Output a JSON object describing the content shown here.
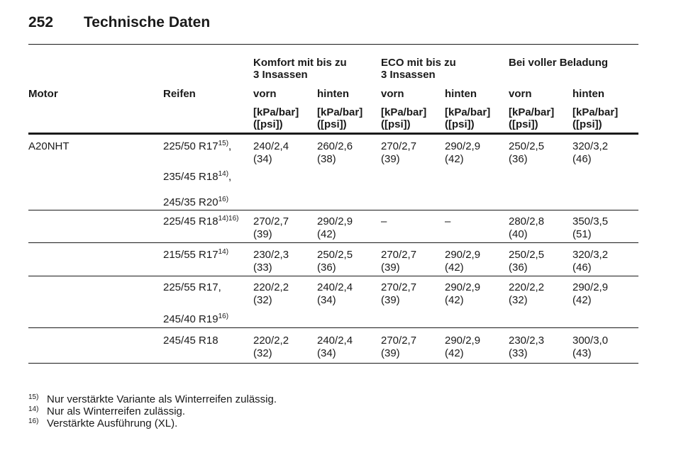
{
  "header": {
    "page": "252",
    "title": "Technische Daten"
  },
  "table": {
    "groups": [
      "Komfort mit bis zu\n3 Insassen",
      "ECO mit bis zu\n3 Insassen",
      "Bei voller Beladung"
    ],
    "columns": [
      "Motor",
      "Reifen",
      "vorn",
      "hinten",
      "vorn",
      "hinten",
      "vorn",
      "hinten"
    ],
    "unit": "[kPa/bar]\n([psi])",
    "rows": [
      {
        "motor": "A20NHT",
        "tires": [
          {
            "text": "225/50 R17",
            "sup": "15)",
            "suffix": ","
          },
          {
            "text": "235/45 R18",
            "sup": "14)",
            "suffix": ","
          },
          {
            "text": "245/35 R20",
            "sup": "16)"
          }
        ],
        "values": [
          [
            "240/2,4",
            "(34)"
          ],
          [
            "260/2,6",
            "(38)"
          ],
          [
            "270/2,7",
            "(39)"
          ],
          [
            "290/2,9",
            "(42)"
          ],
          [
            "250/2,5",
            "(36)"
          ],
          [
            "320/3,2",
            "(46)"
          ]
        ]
      },
      {
        "tires": [
          {
            "text": "225/45 R18",
            "sup": "14)16)"
          }
        ],
        "values": [
          [
            "270/2,7",
            "(39)"
          ],
          [
            "290/2,9",
            "(42)"
          ],
          [
            "–"
          ],
          [
            "–"
          ],
          [
            "280/2,8",
            "(40)"
          ],
          [
            "350/3,5",
            "(51)"
          ]
        ]
      },
      {
        "tires": [
          {
            "text": "215/55 R17",
            "sup": "14)"
          }
        ],
        "values": [
          [
            "230/2,3",
            "(33)"
          ],
          [
            "250/2,5",
            "(36)"
          ],
          [
            "270/2,7",
            "(39)"
          ],
          [
            "290/2,9",
            "(42)"
          ],
          [
            "250/2,5",
            "(36)"
          ],
          [
            "320/3,2",
            "(46)"
          ]
        ]
      },
      {
        "tires": [
          {
            "text": "225/55 R17",
            "suffix": ","
          },
          {
            "text": "245/40 R19",
            "sup": "16)"
          }
        ],
        "values": [
          [
            "220/2,2",
            "(32)"
          ],
          [
            "240/2,4",
            "(34)"
          ],
          [
            "270/2,7",
            "(39)"
          ],
          [
            "290/2,9",
            "(42)"
          ],
          [
            "220/2,2",
            "(32)"
          ],
          [
            "290/2,9",
            "(42)"
          ]
        ]
      },
      {
        "tires": [
          {
            "text": "245/45 R18"
          }
        ],
        "values": [
          [
            "220/2,2",
            "(32)"
          ],
          [
            "240/2,4",
            "(34)"
          ],
          [
            "270/2,7",
            "(39)"
          ],
          [
            "290/2,9",
            "(42)"
          ],
          [
            "230/2,3",
            "(33)"
          ],
          [
            "300/3,0",
            "(43)"
          ]
        ]
      }
    ]
  },
  "footnotes": [
    {
      "mark": "15)",
      "text": "Nur verstärkte Variante als Winterreifen zulässig."
    },
    {
      "mark": "14)",
      "text": "Nur als Winterreifen zulässig."
    },
    {
      "mark": "16)",
      "text": "Verstärkte Ausführung (XL)."
    }
  ]
}
